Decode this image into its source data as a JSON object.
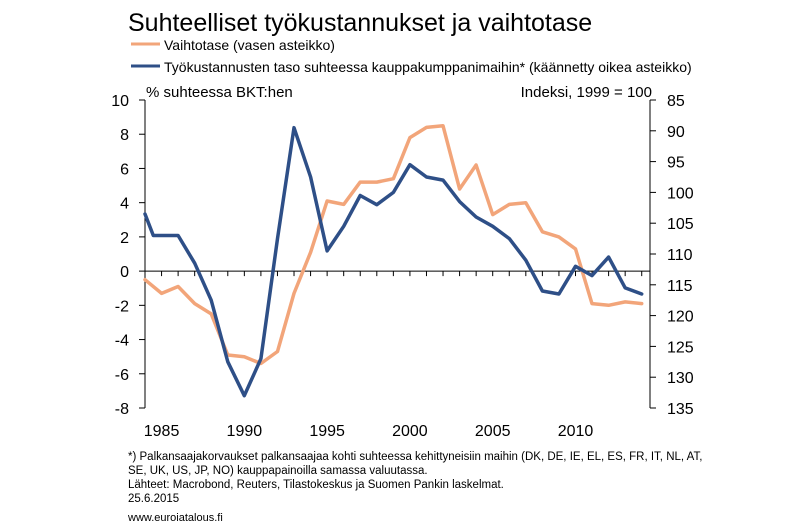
{
  "chart_data": {
    "type": "line",
    "title": "Suhteelliset työkustannukset ja vaihtotase",
    "left_axis_label": "% suhteessa BKT:hen",
    "right_axis_label": "Indeksi, 1999 = 100",
    "left_ylim": [
      -8,
      10
    ],
    "left_ticks": [
      "10",
      "8",
      "6",
      "4",
      "2",
      "0",
      "-2",
      "-4",
      "-6",
      "-8"
    ],
    "right_ylim": [
      85,
      135
    ],
    "right_axis_inverted": true,
    "right_ticks": [
      "85",
      "90",
      "95",
      "100",
      "105",
      "110",
      "115",
      "120",
      "125",
      "130",
      "135"
    ],
    "xlim": [
      1984,
      2014.5
    ],
    "x_ticks": [
      "1985",
      "1990",
      "1995",
      "2000",
      "2005",
      "2010"
    ],
    "grid": false,
    "series": [
      {
        "name": "Vaihtotase (vasen asteikko)",
        "axis": "left",
        "color": "#f2a57a",
        "x": [
          1984,
          1985,
          1986,
          1987,
          1988,
          1989,
          1990,
          1991,
          1992,
          1993,
          1994,
          1995,
          1996,
          1997,
          1998,
          1999,
          2000,
          2001,
          2002,
          2003,
          2004,
          2005,
          2006,
          2007,
          2008,
          2009,
          2010,
          2011,
          2012,
          2013,
          2014
        ],
        "values": [
          -0.5,
          -1.3,
          -0.9,
          -1.9,
          -2.5,
          -4.9,
          -5.0,
          -5.4,
          -4.7,
          -1.3,
          1.1,
          4.1,
          3.9,
          5.2,
          5.2,
          5.4,
          7.8,
          8.4,
          8.5,
          4.8,
          6.2,
          3.3,
          3.9,
          4.0,
          2.3,
          2.0,
          1.3,
          -1.9,
          -2.0,
          -1.8,
          -1.9
        ]
      },
      {
        "name": "Työkustannusten taso suhteessa kauppakumppanimaihin* (käännetty oikea asteikko)",
        "axis": "right",
        "color": "#2e4f87",
        "x": [
          1984,
          1984.5,
          1985,
          1986,
          1987,
          1988,
          1989,
          1990,
          1991,
          1992,
          1993,
          1994,
          1995,
          1996,
          1997,
          1998,
          1999,
          2000,
          2001,
          2002,
          2003,
          2004,
          2005,
          2006,
          2007,
          2008,
          2009,
          2010,
          2011,
          2012,
          2013,
          2014
        ],
        "values": [
          103.5,
          107,
          107,
          107,
          111.5,
          117.5,
          127.5,
          133,
          127,
          107.5,
          89.5,
          97.5,
          109.5,
          105.5,
          100.5,
          102,
          100,
          95.5,
          97.5,
          98,
          101.5,
          104,
          105.5,
          107.5,
          111,
          116,
          116.5,
          112,
          113.5,
          110.5,
          115.5,
          116.5
        ]
      }
    ]
  },
  "footnotes": [
    "*) Palkansaajakorvaukset palkansaajaa kohti suhteessa kehittyneisiin maihin (DK, DE, IE, EL, ES, FR, IT, NL, AT,",
    "SE, UK, US, JP, NO) kauppapainoilla samassa valuutassa.",
    "Lähteet: Macrobond, Reuters, Tilastokeskus ja Suomen Pankin laskelmat.",
    "25.6.2015"
  ],
  "website": "www.euroiatalous.fi"
}
